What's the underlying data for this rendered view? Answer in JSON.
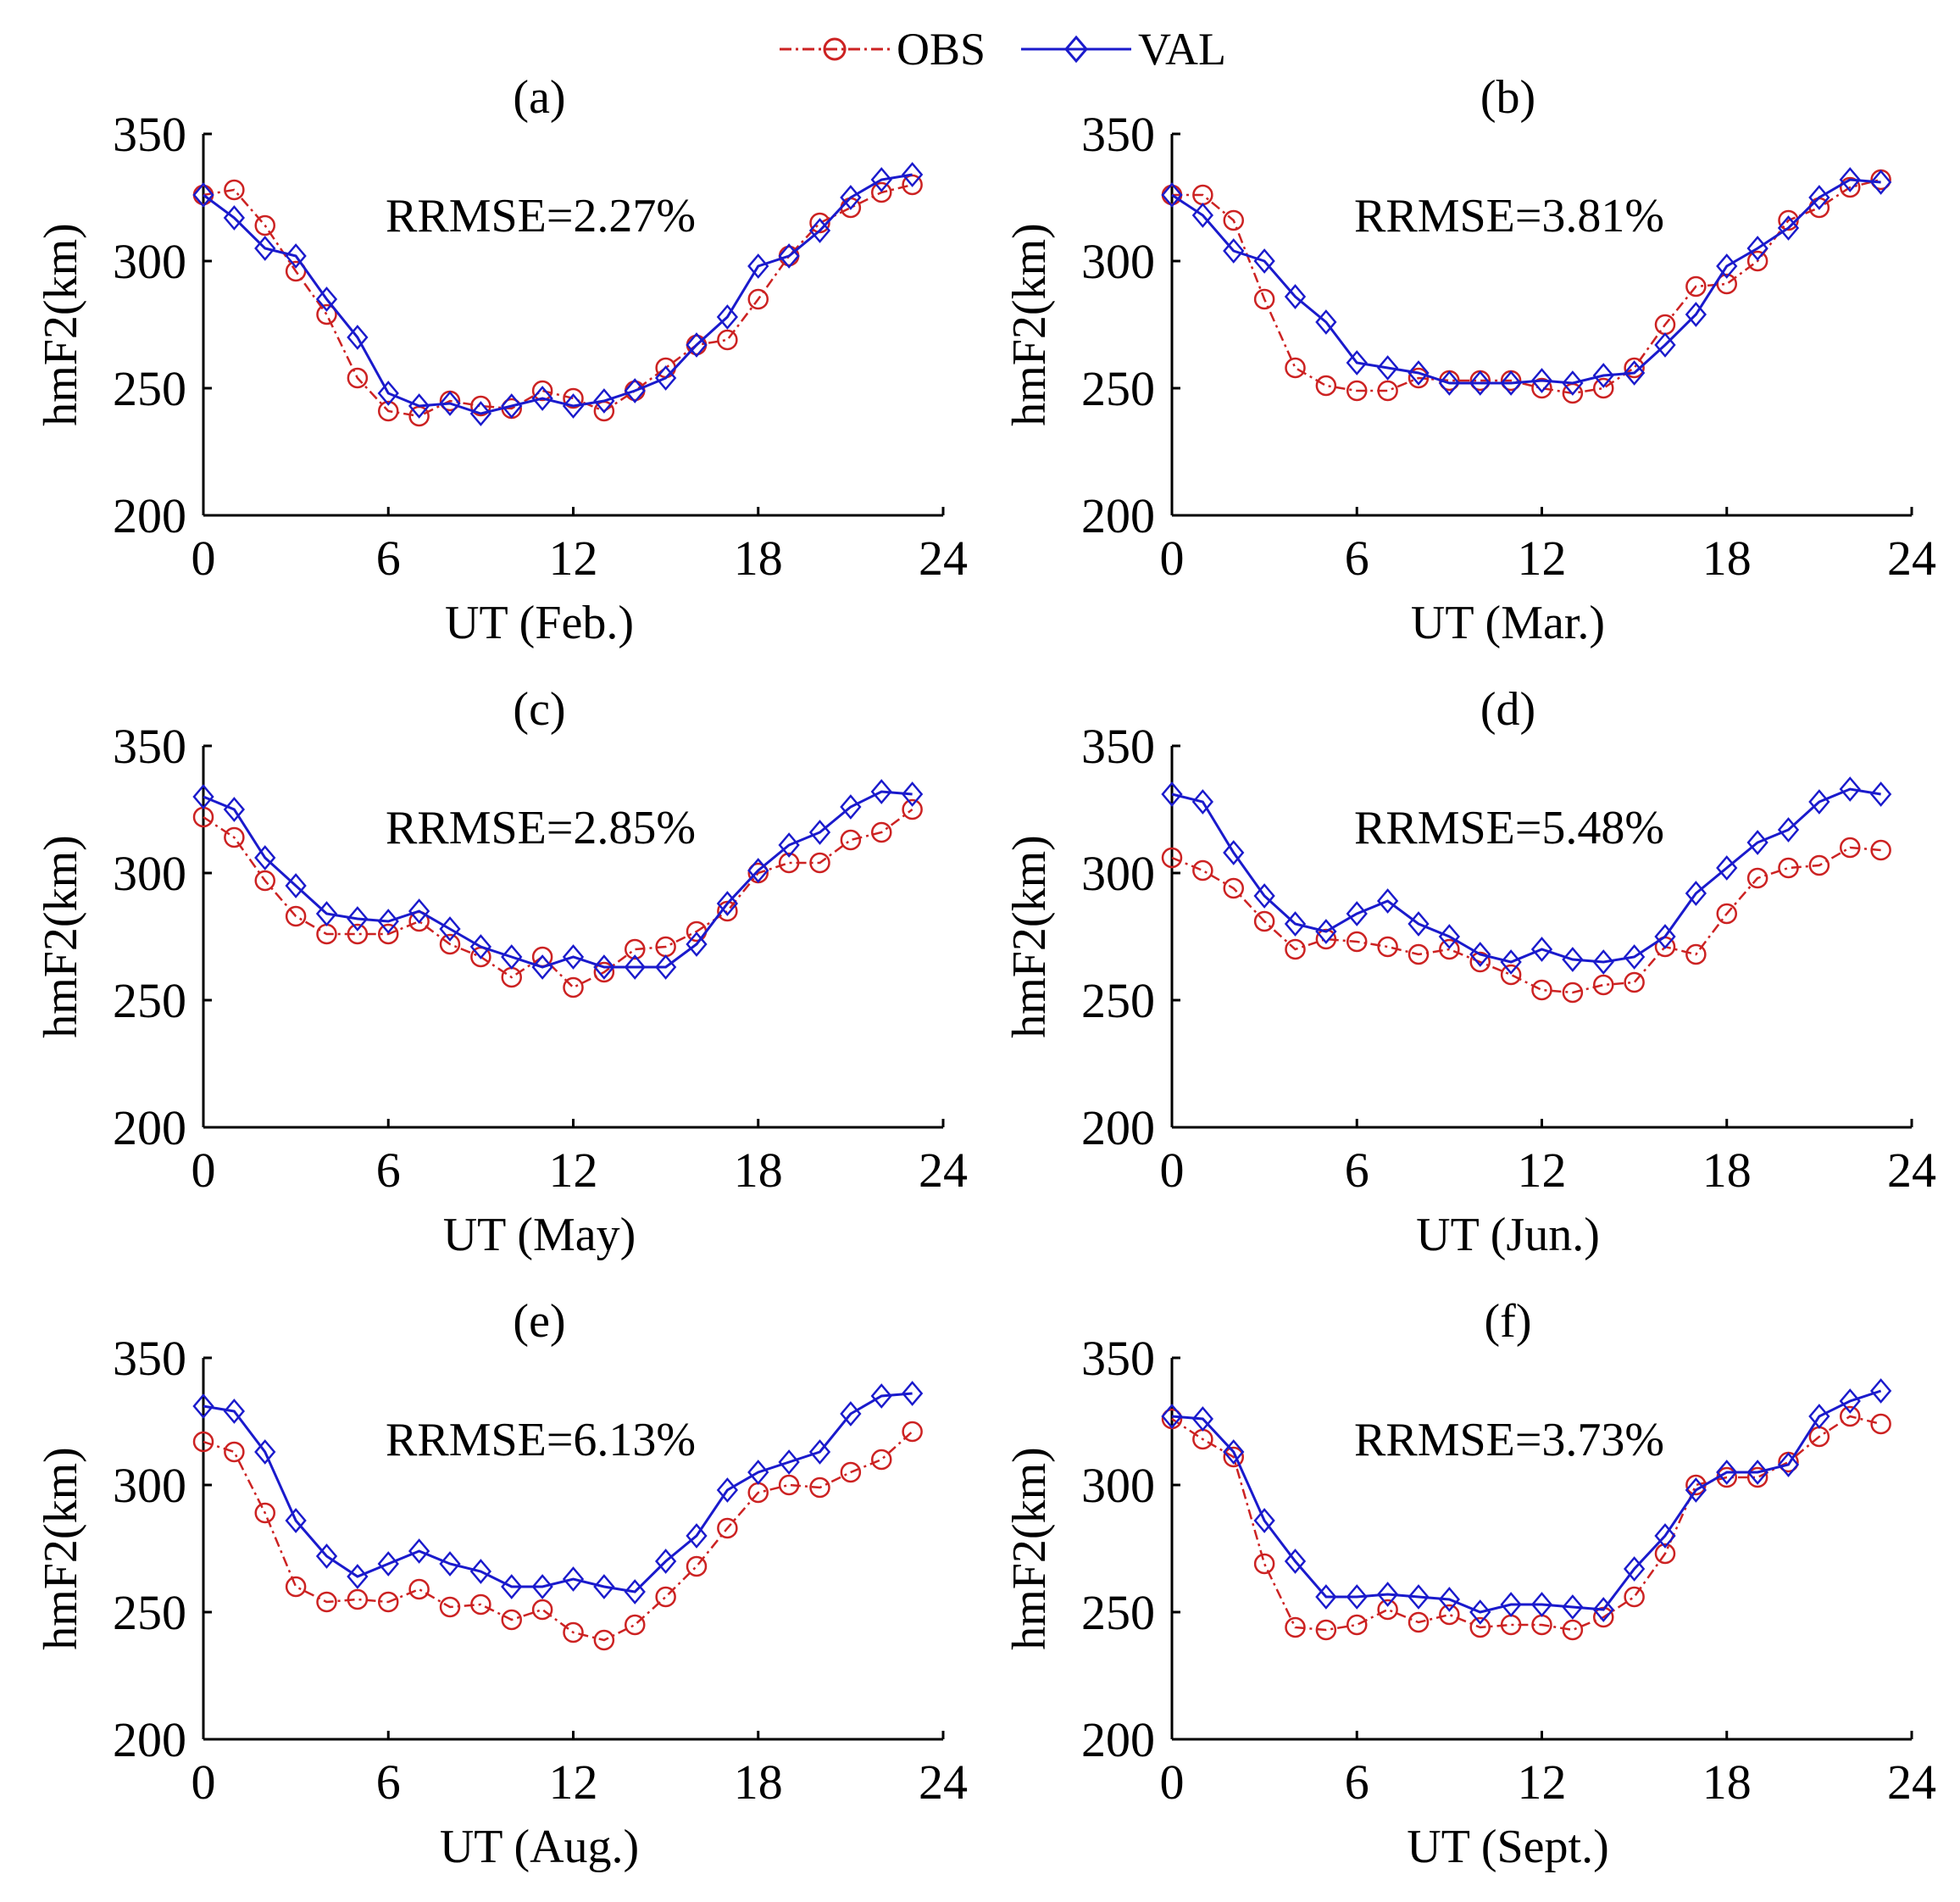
{
  "legend": {
    "entries": [
      {
        "name": "OBS",
        "color": "#cc2222",
        "marker": "circle",
        "line": "dash-dot"
      },
      {
        "name": "VAL",
        "color": "#1a1acc",
        "marker": "diamond",
        "line": "solid"
      }
    ]
  },
  "chart_data": [
    {
      "type": "line",
      "panel": "(a)",
      "xlabel": "UT (Feb.)",
      "ylabel": "hmF2(km)",
      "annotation": "RRMSE=2.27%",
      "xlim": [
        0,
        24
      ],
      "ylim": [
        200,
        350
      ],
      "xticks": [
        0,
        6,
        12,
        18,
        24
      ],
      "yticks": [
        200,
        250,
        300,
        350
      ],
      "x": [
        0,
        1,
        2,
        3,
        4,
        5,
        6,
        7,
        8,
        9,
        10,
        11,
        12,
        13,
        14,
        15,
        16,
        17,
        18,
        19,
        20,
        21,
        22,
        23
      ],
      "series": [
        {
          "name": "OBS",
          "values": [
            326,
            328,
            314,
            296,
            279,
            254,
            241,
            239,
            245,
            243,
            242,
            249,
            246,
            241,
            249,
            258,
            267,
            269,
            285,
            302,
            315,
            321,
            327,
            330
          ]
        },
        {
          "name": "VAL",
          "values": [
            326,
            317,
            305,
            302,
            285,
            270,
            248,
            243,
            244,
            240,
            243,
            246,
            243,
            245,
            249,
            254,
            267,
            278,
            298,
            302,
            312,
            325,
            332,
            334
          ]
        }
      ]
    },
    {
      "type": "line",
      "panel": "(b)",
      "xlabel": "UT (Mar.)",
      "ylabel": "hmF2(km)",
      "annotation": "RRMSE=3.81%",
      "xlim": [
        0,
        24
      ],
      "ylim": [
        200,
        350
      ],
      "xticks": [
        0,
        6,
        12,
        18,
        24
      ],
      "yticks": [
        200,
        250,
        300,
        350
      ],
      "x": [
        0,
        1,
        2,
        3,
        4,
        5,
        6,
        7,
        8,
        9,
        10,
        11,
        12,
        13,
        14,
        15,
        16,
        17,
        18,
        19,
        20,
        21,
        22,
        23
      ],
      "series": [
        {
          "name": "OBS",
          "values": [
            326,
            326,
            316,
            285,
            258,
            251,
            249,
            249,
            254,
            253,
            253,
            253,
            250,
            248,
            250,
            258,
            275,
            290,
            291,
            300,
            316,
            321,
            329,
            332
          ]
        },
        {
          "name": "VAL",
          "values": [
            326,
            318,
            304,
            300,
            286,
            276,
            260,
            258,
            256,
            252,
            252,
            252,
            253,
            252,
            255,
            256,
            267,
            279,
            298,
            305,
            313,
            325,
            332,
            331
          ]
        }
      ]
    },
    {
      "type": "line",
      "panel": "(c)",
      "xlabel": "UT (May)",
      "ylabel": "hmF2(km)",
      "annotation": "RRMSE=2.85%",
      "xlim": [
        0,
        24
      ],
      "ylim": [
        200,
        350
      ],
      "xticks": [
        0,
        6,
        12,
        18,
        24
      ],
      "yticks": [
        200,
        250,
        300,
        350
      ],
      "x": [
        0,
        1,
        2,
        3,
        4,
        5,
        6,
        7,
        8,
        9,
        10,
        11,
        12,
        13,
        14,
        15,
        16,
        17,
        18,
        19,
        20,
        21,
        22,
        23
      ],
      "series": [
        {
          "name": "OBS",
          "values": [
            322,
            314,
            297,
            283,
            276,
            276,
            276,
            281,
            272,
            267,
            259,
            267,
            255,
            261,
            270,
            271,
            277,
            285,
            300,
            304,
            304,
            313,
            316,
            325
          ]
        },
        {
          "name": "VAL",
          "values": [
            330,
            325,
            306,
            295,
            284,
            282,
            281,
            285,
            278,
            271,
            267,
            263,
            267,
            263,
            263,
            263,
            272,
            288,
            301,
            311,
            316,
            326,
            332,
            331
          ]
        }
      ]
    },
    {
      "type": "line",
      "panel": "(d)",
      "xlabel": "UT (Jun.)",
      "ylabel": "hmF2(km)",
      "annotation": "RRMSE=5.48%",
      "xlim": [
        0,
        24
      ],
      "ylim": [
        200,
        350
      ],
      "xticks": [
        0,
        6,
        12,
        18,
        24
      ],
      "yticks": [
        200,
        250,
        300,
        350
      ],
      "x": [
        0,
        1,
        2,
        3,
        4,
        5,
        6,
        7,
        8,
        9,
        10,
        11,
        12,
        13,
        14,
        15,
        16,
        17,
        18,
        19,
        20,
        21,
        22,
        23
      ],
      "series": [
        {
          "name": "OBS",
          "values": [
            306,
            301,
            294,
            281,
            270,
            274,
            273,
            271,
            268,
            270,
            265,
            260,
            254,
            253,
            256,
            257,
            271,
            268,
            284,
            298,
            302,
            303,
            310,
            309
          ]
        },
        {
          "name": "VAL",
          "values": [
            331,
            328,
            308,
            291,
            280,
            277,
            284,
            289,
            280,
            275,
            268,
            265,
            270,
            266,
            265,
            267,
            275,
            292,
            302,
            312,
            317,
            328,
            333,
            331
          ]
        }
      ]
    },
    {
      "type": "line",
      "panel": "(e)",
      "xlabel": "UT (Aug.)",
      "ylabel": "hmF2(km)",
      "annotation": "RRMSE=6.13%",
      "xlim": [
        0,
        24
      ],
      "ylim": [
        200,
        350
      ],
      "xticks": [
        0,
        6,
        12,
        18,
        24
      ],
      "yticks": [
        200,
        250,
        300,
        350
      ],
      "x": [
        0,
        1,
        2,
        3,
        4,
        5,
        6,
        7,
        8,
        9,
        10,
        11,
        12,
        13,
        14,
        15,
        16,
        17,
        18,
        19,
        20,
        21,
        22,
        23
      ],
      "series": [
        {
          "name": "OBS",
          "values": [
            317,
            313,
            289,
            260,
            254,
            255,
            254,
            259,
            252,
            253,
            247,
            251,
            242,
            239,
            245,
            256,
            268,
            283,
            297,
            300,
            299,
            305,
            310,
            321
          ]
        },
        {
          "name": "VAL",
          "values": [
            331,
            329,
            313,
            286,
            272,
            264,
            269,
            274,
            269,
            266,
            260,
            260,
            263,
            260,
            258,
            270,
            280,
            298,
            305,
            309,
            313,
            328,
            335,
            336
          ]
        }
      ]
    },
    {
      "type": "line",
      "panel": "(f)",
      "xlabel": "UT (Sept.)",
      "ylabel": "hmF2(km)",
      "annotation": "RRMSE=3.73%",
      "xlim": [
        0,
        24
      ],
      "ylim": [
        200,
        350
      ],
      "xticks": [
        0,
        6,
        12,
        18,
        24
      ],
      "yticks": [
        200,
        250,
        300,
        350
      ],
      "x": [
        0,
        1,
        2,
        3,
        4,
        5,
        6,
        7,
        8,
        9,
        10,
        11,
        12,
        13,
        14,
        15,
        16,
        17,
        18,
        19,
        20,
        21,
        22,
        23
      ],
      "series": [
        {
          "name": "OBS",
          "values": [
            326,
            318,
            311,
            269,
            244,
            243,
            245,
            251,
            246,
            249,
            244,
            245,
            245,
            243,
            248,
            256,
            273,
            300,
            303,
            303,
            309,
            319,
            327,
            324
          ]
        },
        {
          "name": "VAL",
          "values": [
            327,
            326,
            313,
            286,
            270,
            256,
            256,
            257,
            256,
            255,
            250,
            253,
            253,
            252,
            251,
            267,
            280,
            298,
            305,
            305,
            308,
            327,
            333,
            337
          ]
        }
      ]
    }
  ]
}
